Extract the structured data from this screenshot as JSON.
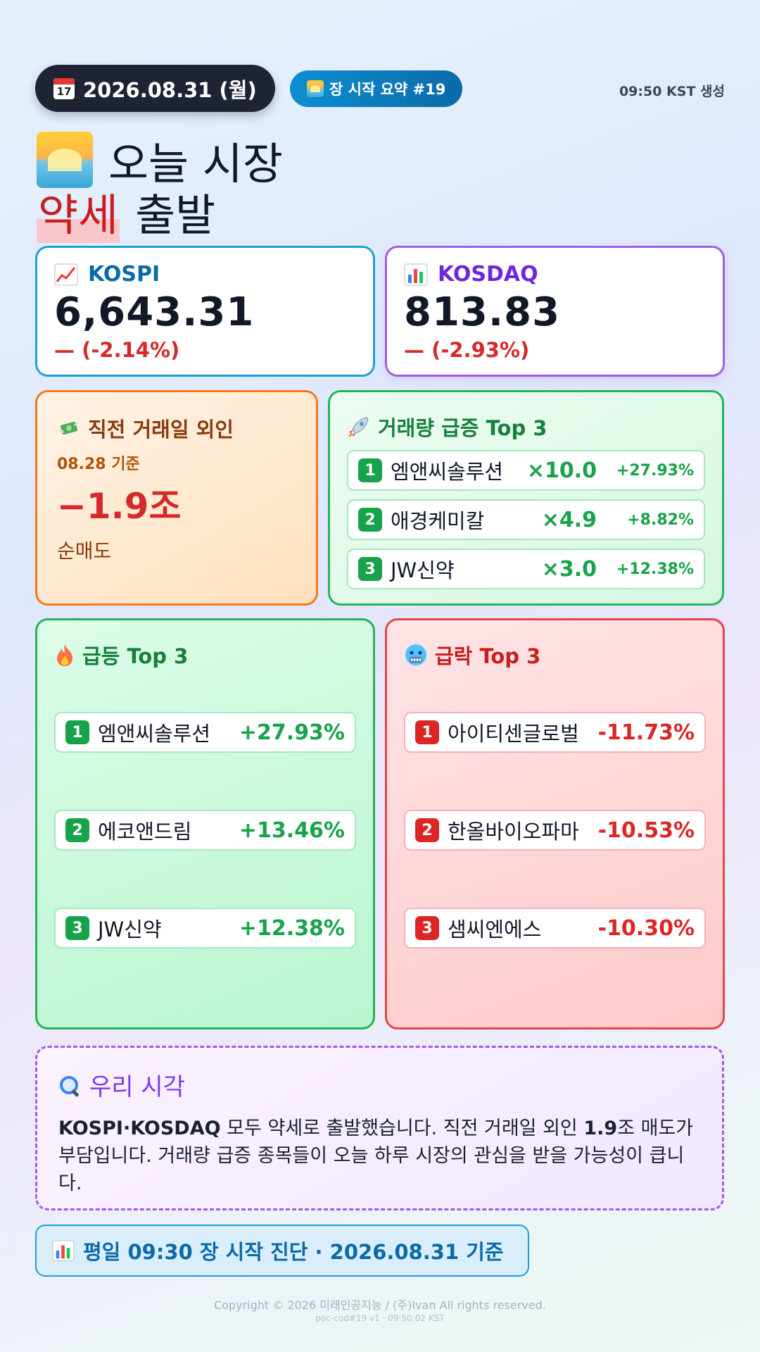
{
  "header": {
    "date_label": "2026.08.31 (월)",
    "calendar_day": "17",
    "summary_label": "장 시작 요약 #19",
    "generated_time": "09:50 KST 생성"
  },
  "title": {
    "line1": "오늘 시장",
    "highlight": "약세",
    "line2_rest": "출발"
  },
  "indices": {
    "kospi": {
      "label": "KOSPI",
      "value": "6,643.31",
      "change": "— (-2.14%)"
    },
    "kosdaq": {
      "label": "KOSDAQ",
      "value": "813.83",
      "change": "— (-2.93%)"
    }
  },
  "foreign": {
    "title": "직전 거래일 외인",
    "date": "08.28 기준",
    "amount": "−1.9조",
    "desc": "순매도"
  },
  "volume_surge": {
    "title": "거래량 급증 Top 3",
    "items": [
      {
        "rank": "1",
        "name": "엠앤씨솔루션",
        "multiple": "×10.0",
        "change": "+27.93%"
      },
      {
        "rank": "2",
        "name": "애경케미칼",
        "multiple": "×4.9",
        "change": "+8.82%"
      },
      {
        "rank": "3",
        "name": "JW신약",
        "multiple": "×3.0",
        "change": "+12.38%"
      }
    ]
  },
  "gainers": {
    "title": "급등 Top 3",
    "items": [
      {
        "rank": "1",
        "name": "엠앤씨솔루션",
        "change": "+27.93%"
      },
      {
        "rank": "2",
        "name": "에코앤드림",
        "change": "+13.46%"
      },
      {
        "rank": "3",
        "name": "JW신약",
        "change": "+12.38%"
      }
    ]
  },
  "losers": {
    "title": "급락 Top 3",
    "items": [
      {
        "rank": "1",
        "name": "아이티센글로벌",
        "change": "-11.73%"
      },
      {
        "rank": "2",
        "name": "한올바이오파마",
        "change": "-10.53%"
      },
      {
        "rank": "3",
        "name": "샘씨엔에스",
        "change": "-10.30%"
      }
    ]
  },
  "view": {
    "title": "우리 시각",
    "body_bold1": "KOSPI·KOSDAQ",
    "body_mid": " 모두 약세로 출발했습니다. 직전 거래일 외인 ",
    "body_bold2": "1.9",
    "body_end": "조 매도가 부담입니다. 거래량 급증 종목들이 오늘 하루 시장의 관심을 받을 가능성이 큽니다."
  },
  "footer": {
    "basis": "평일 09:30 장 시작 진단 · 2026.08.31 기준",
    "copyright": "Copyright © 2026 미래인공지능 / (주)Ivan All rights reserved.",
    "build": "poc-cod#19 v1 · 09:50:02 KST"
  },
  "colors": {
    "up": "#16a34a",
    "down": "#dc2626",
    "kospi_accent": "#1aa0d8",
    "kosdaq_accent": "#a35ce0"
  },
  "icons": {
    "date": "calendar-icon",
    "summary": "sunrise-icon",
    "title": "sunrise-icon",
    "kospi": "chart-increasing-icon",
    "kosdaq": "bar-chart-icon",
    "foreign": "money-wings-icon",
    "volume": "rocket-icon",
    "gainers": "fire-icon",
    "losers": "cold-face-icon",
    "view": "magnifier-icon",
    "basis": "bar-chart-icon"
  }
}
